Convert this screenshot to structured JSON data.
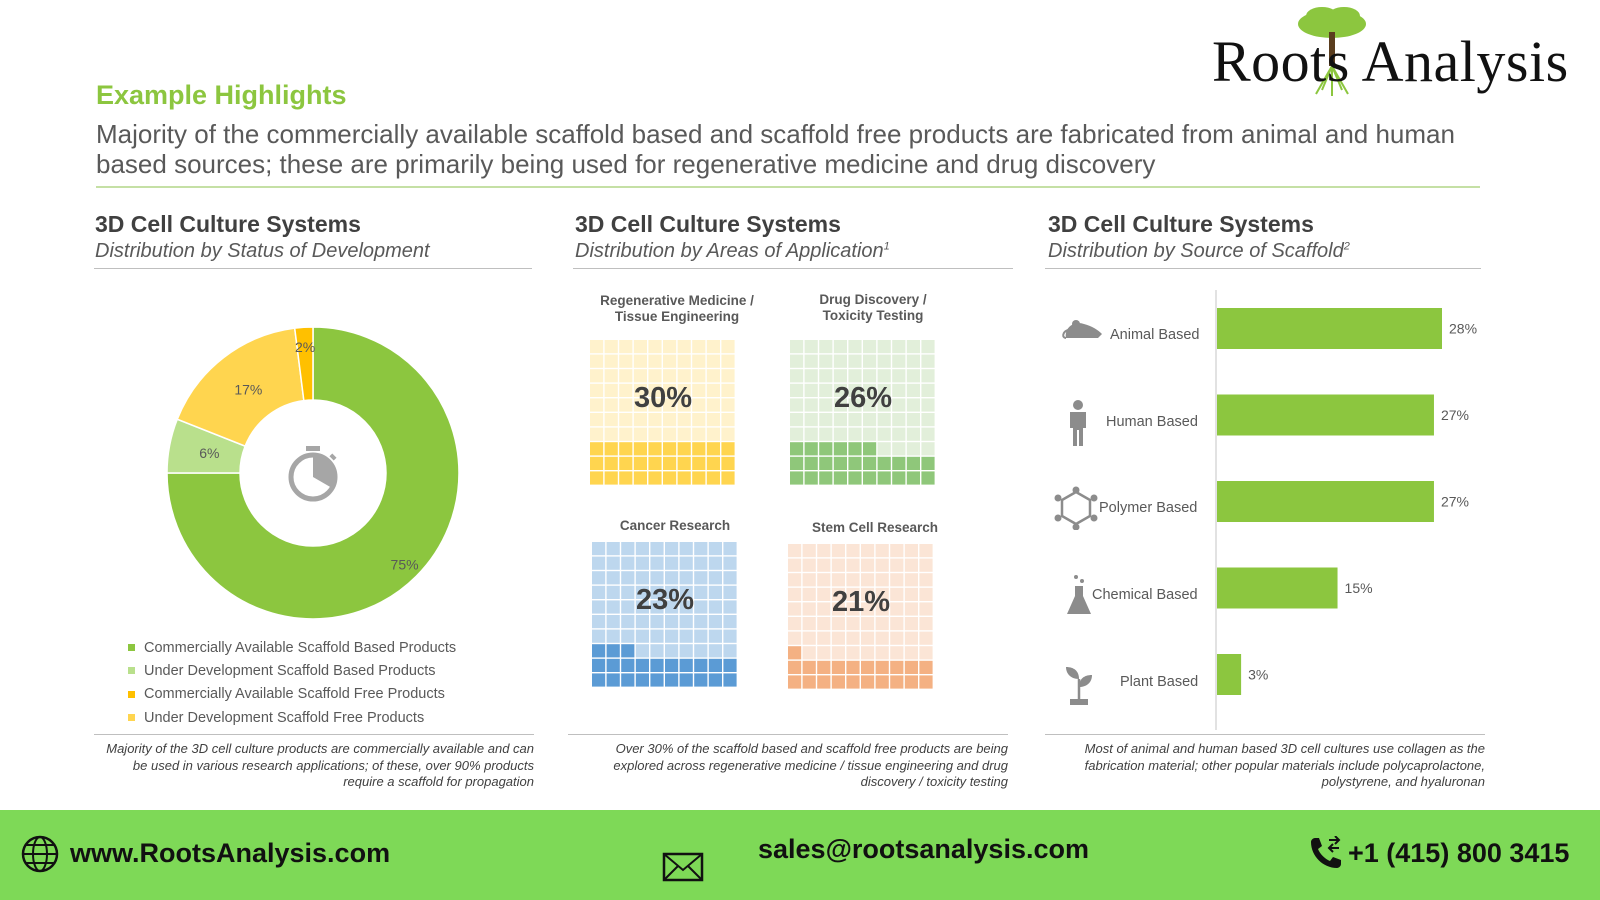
{
  "brand": {
    "name": "Roots Analysis",
    "tree_color": "#8cc63f"
  },
  "header": {
    "section_label": "Example Highlights",
    "headline": "Majority of the commercially available scaffold based and scaffold free products are fabricated from animal and human based sources; these are primarily being used for regenerative medicine and drug discovery"
  },
  "colors": {
    "green": "#8cc63f",
    "light_green": "#b9e08c",
    "yellow": "#ffd54f",
    "gold": "#ffc000",
    "accent_green": "#7ed957"
  },
  "panels": [
    {
      "title": "3D Cell Culture Systems",
      "subtitle": "Distribution by Status of Development",
      "note": "Majority of the 3D cell culture products are commercially available and can be used in various research applications; of these, over 90% products require a scaffold for propagation",
      "center_icon": "stopwatch-icon"
    },
    {
      "title": "3D Cell Culture Systems",
      "subtitle": "Distribution by Areas of Application",
      "footnote_mark": "1",
      "note": "Over 30% of the scaffold based and scaffold free products are being explored across regenerative medicine / tissue engineering and drug discovery / toxicity testing"
    },
    {
      "title": "3D Cell Culture Systems",
      "subtitle": "Distribution by Source of Scaffold",
      "footnote_mark": "2",
      "note": "Most of animal and human based 3D cell cultures use collagen as the fabrication material; other popular materials include polycaprolactone, polystyrene, and hyaluronan"
    }
  ],
  "chart_data": [
    {
      "type": "pie",
      "variant": "donut",
      "labels": [
        "Commercially Available  Scaffold Based Products",
        "Under Development  Scaffold Based Products",
        "Commercially Available  Scaffold Free Products",
        "Under Development  Scaffold Free Products"
      ],
      "values": [
        75,
        6,
        17,
        2
      ],
      "value_labels": [
        "75%",
        "6%",
        "17%",
        "2%"
      ],
      "colors": [
        "#8cc63f",
        "#b9e08c",
        "#ffd54f",
        "#ffc000"
      ],
      "legend_colors": [
        "#8cc63f",
        "#b9e08c",
        "#ffc000",
        "#ffd54f"
      ],
      "legend_position": "bottom"
    },
    {
      "type": "waffle",
      "grid": "10x10",
      "categories": [
        "Regenerative Medicine / Tissue Engineering",
        "Drug Discovery / Toxicity Testing",
        "Cancer Research",
        "Stem Cell Research"
      ],
      "values": [
        30,
        26,
        23,
        21
      ],
      "value_labels": [
        "30%",
        "26%",
        "23%",
        "21%"
      ],
      "colors": [
        "#ffd54f",
        "#8fc77a",
        "#5b9bd5",
        "#f4b183"
      ],
      "light_colors": [
        "#fff2cc",
        "#e2efda",
        "#bdd7ee",
        "#fbe5d6"
      ]
    },
    {
      "type": "bar",
      "orientation": "horizontal",
      "categories": [
        "Animal Based",
        "Human Based",
        "Polymer Based",
        "Chemical Based",
        "Plant Based"
      ],
      "values": [
        28,
        27,
        27,
        15,
        3
      ],
      "value_labels": [
        "28%",
        "27%",
        "27%",
        "15%",
        "3%"
      ],
      "icons": [
        "mouse-icon",
        "person-icon",
        "molecule-icon",
        "flask-icon",
        "plant-icon"
      ],
      "color": "#8cc63f",
      "xlim": [
        0,
        30
      ],
      "grid": false
    }
  ],
  "footer": {
    "website": "www.RootsAnalysis.com",
    "email": "sales@rootsanalysis.com",
    "phone": "+1 (415) 800 3415",
    "icons": [
      "globe-icon",
      "mail-icon",
      "phone-icon"
    ]
  }
}
